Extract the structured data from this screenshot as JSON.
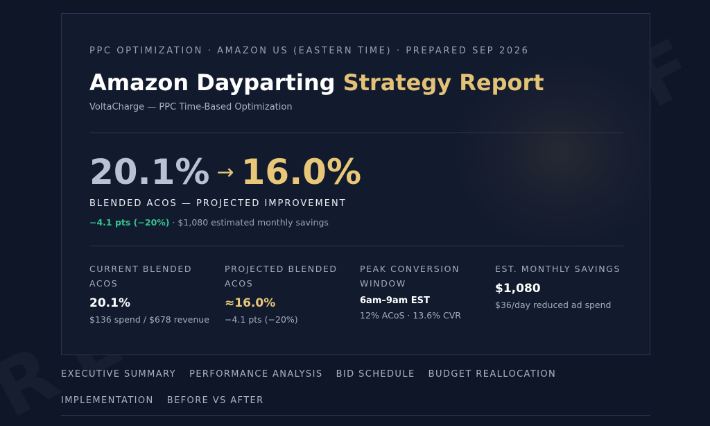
{
  "watermark": {
    "text1": "REF",
    "text2": "EF"
  },
  "header": {
    "kicker": "PPC OPTIMIZATION · AMAZON US (EASTERN TIME) · PREPARED SEP 2026",
    "title_part1": "Amazon Dayparting",
    "title_part2": "Strategy Report",
    "subtitle": "VoltaCharge — PPC Time-Based Optimization"
  },
  "hero": {
    "from": "20.1%",
    "arrow": "→",
    "to": "16.0%",
    "label": "BLENDED ACOS — PROJECTED IMPROVEMENT",
    "delta": "−4.1 pts (−20%)",
    "delta_suffix": " · $1,080 estimated monthly savings"
  },
  "stats": [
    {
      "label": "CURRENT BLENDED ACOS",
      "value": "20.1%",
      "note": "$136 spend / $678 revenue"
    },
    {
      "label": "PROJECTED BLENDED ACOS",
      "value": "≈16.0%",
      "note": "−4.1 pts (−20%)"
    },
    {
      "label": "PEAK CONVERSION WINDOW",
      "value": "6am–9am EST",
      "note": "12% ACoS · 13.6% CVR"
    },
    {
      "label": "EST. MONTHLY SAVINGS",
      "value": "$1,080",
      "note": "$36/day reduced ad spend"
    }
  ],
  "nav": {
    "items": [
      "EXECUTIVE SUMMARY",
      "PERFORMANCE ANALYSIS",
      "BID SCHEDULE",
      "BUDGET REALLOCATION",
      "IMPLEMENTATION",
      "BEFORE VS AFTER"
    ]
  },
  "colors": {
    "background": "#0f1628",
    "card": "#121a2e",
    "gold": "#e8c878",
    "green": "#34c38f",
    "muted": "#a4adbe"
  }
}
